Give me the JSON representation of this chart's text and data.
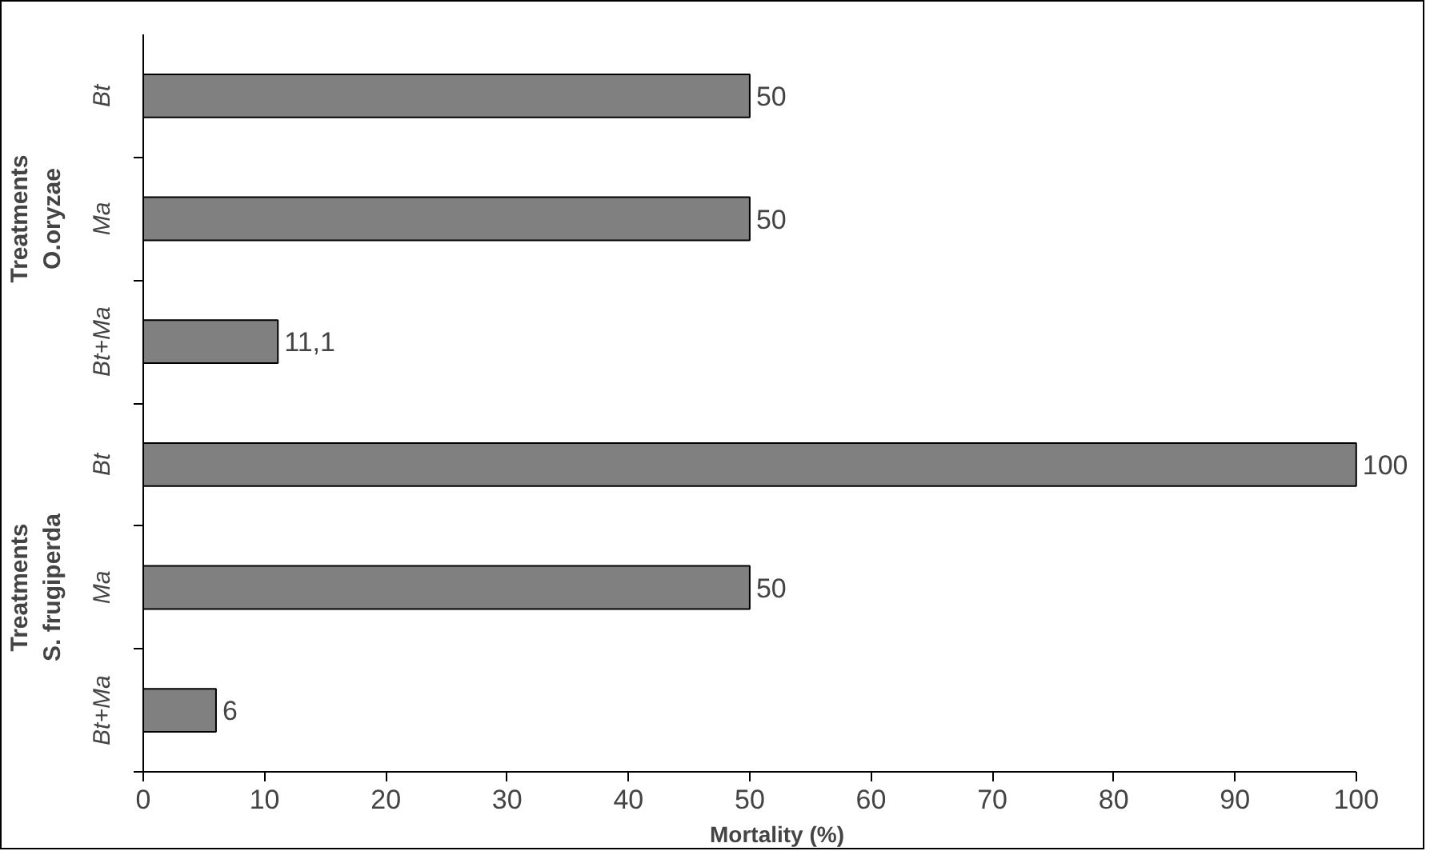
{
  "chart_data": {
    "type": "bar",
    "orientation": "horizontal",
    "categories": [
      "Bt",
      "Ma",
      "Bt+Ma",
      "Bt",
      "Ma",
      "Bt+Ma"
    ],
    "values": [
      50,
      50,
      11.1,
      100,
      50,
      6
    ],
    "value_labels": [
      "50",
      "50",
      "11,1",
      "100",
      "50",
      "6"
    ],
    "color": "#808080",
    "xlabel": "Mortality (%)",
    "xlim": [
      0,
      100
    ],
    "xticks": [
      0,
      10,
      20,
      30,
      40,
      50,
      60,
      70,
      80,
      90,
      100
    ],
    "annotations": [
      "Treatments\nO.oryzae",
      "Treatments\nS. frugiperda"
    ],
    "grid": false
  }
}
